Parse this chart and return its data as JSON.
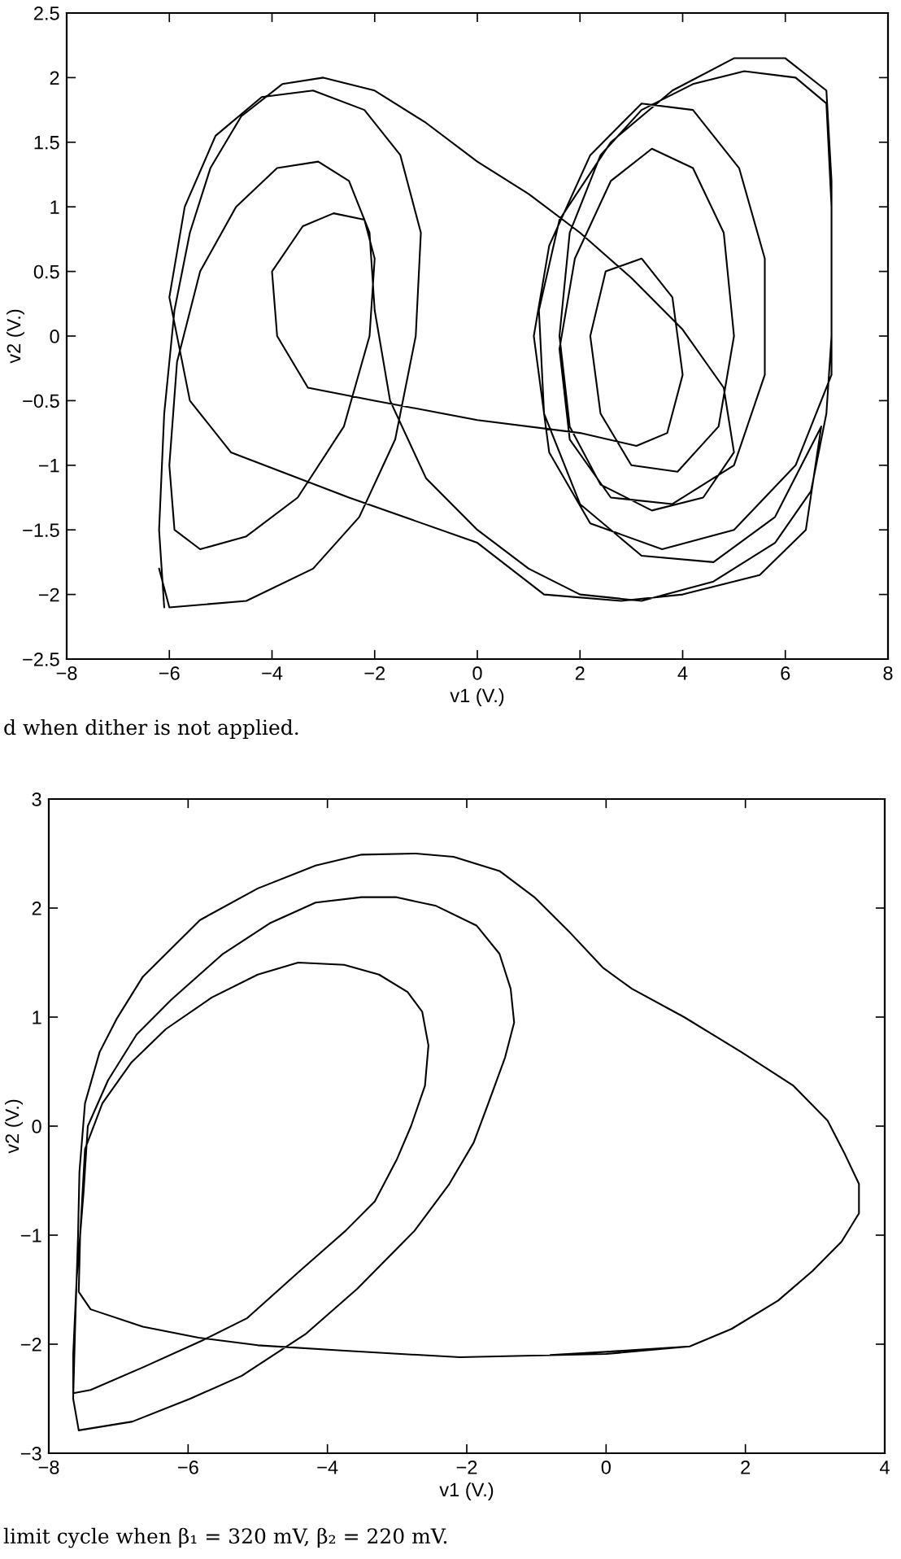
{
  "chart_data": [
    {
      "type": "line",
      "xlabel": "v1 (V.)",
      "ylabel": "v2 (V.)",
      "xlim": [
        -8,
        8
      ],
      "ylim": [
        -2.5,
        2.5
      ],
      "xticks": [
        -8,
        -6,
        -4,
        -2,
        0,
        2,
        4,
        6,
        8
      ],
      "yticks": [
        -2.5,
        -2,
        -1.5,
        -1,
        -0.5,
        0,
        0.5,
        1,
        1.5,
        2,
        2.5
      ],
      "series": [
        {
          "color": "#000000",
          "x": [
            -6.1,
            -6.2,
            -6.1,
            -5.9,
            -5.6,
            -5.2,
            -4.6,
            -3.8,
            -3.0,
            -2.0,
            -1.0,
            0.0,
            1.0,
            2.0,
            3.0,
            4.0,
            4.8,
            5.0,
            4.4,
            3.4,
            2.4,
            1.8,
            1.6,
            1.8,
            2.4,
            3.2,
            4.2,
            5.2,
            6.2,
            6.8,
            6.9,
            6.9,
            6.8,
            6.5,
            5.8,
            4.6,
            3.2,
            2.0,
            1.0,
            0.0,
            -1.0,
            -1.7,
            -2.0,
            -2.1,
            -2.5,
            -3.1,
            -3.9,
            -4.7,
            -5.4,
            -5.85,
            -6.0,
            -5.9,
            -5.4,
            -4.5,
            -3.5,
            -2.6,
            -2.1,
            -2.0,
            -2.2,
            -2.8,
            -3.4,
            -4.0,
            -3.9,
            -3.3,
            -2.0,
            0.0,
            2.0,
            3.1,
            3.7,
            4.0,
            3.8,
            3.2,
            2.5,
            2.2,
            2.4,
            3.0,
            3.9,
            4.7,
            5.0,
            4.8,
            4.2,
            3.4,
            2.6,
            1.9,
            1.6,
            1.8,
            2.6,
            3.8,
            5.0,
            5.6,
            5.6,
            5.1,
            4.2,
            3.2,
            2.2,
            1.4,
            1.1,
            1.4,
            2.2,
            3.6,
            5.0,
            6.2,
            6.9,
            6.9,
            6.8,
            6.0,
            5.0,
            3.8,
            2.6,
            1.6,
            1.2,
            1.3,
            2.0,
            3.2,
            4.6,
            5.8,
            6.7,
            6.4,
            5.5,
            4.0,
            2.8,
            1.3,
            0.0,
            -2.5,
            -4.8,
            -5.6,
            -6.0,
            -5.7,
            -5.1,
            -4.2,
            -3.2,
            -2.2,
            -1.5,
            -1.1,
            -1.2,
            -1.6,
            -2.3,
            -3.2,
            -4.5,
            -6.0,
            -6.2
          ],
          "values": [
            -2.1,
            -1.5,
            -0.6,
            0.2,
            0.8,
            1.3,
            1.7,
            1.95,
            2.0,
            1.9,
            1.65,
            1.35,
            1.1,
            0.8,
            0.45,
            0.05,
            -0.4,
            -0.9,
            -1.25,
            -1.35,
            -1.15,
            -0.7,
            0.0,
            0.8,
            1.4,
            1.75,
            1.95,
            2.05,
            2.0,
            1.8,
            1.0,
            0.0,
            -0.6,
            -1.2,
            -1.6,
            -1.9,
            -2.05,
            -2.0,
            -1.8,
            -1.5,
            -1.1,
            -0.5,
            0.2,
            0.8,
            1.2,
            1.35,
            1.3,
            1.0,
            0.5,
            -0.2,
            -1.0,
            -1.5,
            -1.65,
            -1.55,
            -1.25,
            -0.7,
            0.0,
            0.6,
            0.9,
            0.95,
            0.85,
            0.5,
            0.0,
            -0.4,
            -0.5,
            -0.65,
            -0.75,
            -0.85,
            -0.75,
            -0.3,
            0.3,
            0.6,
            0.5,
            0.0,
            -0.6,
            -1.0,
            -1.05,
            -0.7,
            0.0,
            0.8,
            1.3,
            1.45,
            1.2,
            0.6,
            -0.1,
            -0.8,
            -1.25,
            -1.3,
            -1.0,
            -0.3,
            0.6,
            1.3,
            1.75,
            1.8,
            1.4,
            0.7,
            0.0,
            -0.9,
            -1.45,
            -1.65,
            -1.5,
            -1.0,
            -0.3,
            1.2,
            1.9,
            2.15,
            2.15,
            1.9,
            1.5,
            0.9,
            0.2,
            -0.6,
            -1.3,
            -1.7,
            -1.75,
            -1.4,
            -0.7,
            -1.5,
            -1.85,
            -2.0,
            -2.05,
            -2.0,
            -1.6,
            -1.25,
            -0.9,
            -0.5,
            0.3,
            1.0,
            1.55,
            1.85,
            1.9,
            1.75,
            1.4,
            0.8,
            0.0,
            -0.8,
            -1.4,
            -1.8,
            -2.05,
            -2.1,
            -1.8
          ]
        }
      ],
      "annotations": [
        "d when dither is not applied."
      ]
    },
    {
      "type": "line",
      "xlabel": "v1 (V.)",
      "ylabel": "v2 (V.)",
      "xlim": [
        -8,
        4
      ],
      "ylim": [
        -3,
        3
      ],
      "xticks": [
        -8,
        -6,
        -4,
        -2,
        0,
        2,
        4
      ],
      "yticks": [
        -3,
        -2,
        -1,
        0,
        1,
        2,
        3
      ],
      "series": [
        {
          "color": "#000000",
          "x": [
            1.2,
            0.0,
            -2.1,
            -3.75,
            -5.0,
            -5.85,
            -6.65,
            -7.4,
            -7.57,
            -7.55,
            -7.48,
            -7.23,
            -6.82,
            -6.32,
            -5.66,
            -5.0,
            -4.42,
            -3.76,
            -3.26,
            -2.85,
            -2.64,
            -2.55,
            -2.6,
            -2.8,
            -3.0,
            -3.32,
            -3.74,
            -4.4,
            -5.15,
            -5.81,
            -6.64,
            -7.4,
            -7.65,
            -7.65,
            -7.6,
            -7.5,
            -7.44,
            -7.15,
            -6.74,
            -6.24,
            -5.5,
            -4.83,
            -4.17,
            -3.51,
            -3.02,
            -2.44,
            -1.86,
            -1.53,
            -1.37,
            -1.32,
            -1.45,
            -1.69,
            -1.9,
            -2.25,
            -2.75,
            -3.57,
            -4.32,
            -5.23,
            -5.97,
            -6.8,
            -7.57,
            -7.65,
            -7.62,
            -7.58,
            -7.56,
            -7.48,
            -7.27,
            -7.02,
            -6.65,
            -5.83,
            -5.0,
            -4.17,
            -3.51,
            -2.73,
            -2.19,
            -1.53,
            -1.03,
            -0.54,
            -0.04,
            0.37,
            1.12,
            1.94,
            2.69,
            3.18,
            3.43,
            3.63,
            3.63,
            3.38,
            2.96,
            2.47,
            1.8,
            1.2,
            0.0,
            -0.8
          ],
          "values": [
            -2.02,
            -2.09,
            -2.12,
            -2.06,
            -2.01,
            -1.94,
            -1.84,
            -1.68,
            -1.52,
            -1.0,
            -0.21,
            0.21,
            0.58,
            0.89,
            1.18,
            1.39,
            1.5,
            1.48,
            1.39,
            1.23,
            1.05,
            0.74,
            0.37,
            0.0,
            -0.3,
            -0.69,
            -0.96,
            -1.33,
            -1.76,
            -1.97,
            -2.21,
            -2.42,
            -2.45,
            -2.1,
            -1.4,
            -0.6,
            0.0,
            0.42,
            0.84,
            1.16,
            1.58,
            1.86,
            2.05,
            2.1,
            2.1,
            2.02,
            1.84,
            1.58,
            1.26,
            0.95,
            0.63,
            0.21,
            -0.15,
            -0.53,
            -0.96,
            -1.49,
            -1.91,
            -2.29,
            -2.5,
            -2.71,
            -2.79,
            -2.5,
            -1.8,
            -1.0,
            -0.42,
            0.21,
            0.68,
            0.99,
            1.37,
            1.89,
            2.18,
            2.39,
            2.49,
            2.5,
            2.47,
            2.34,
            2.1,
            1.79,
            1.45,
            1.26,
            1.0,
            0.68,
            0.37,
            0.05,
            -0.26,
            -0.53,
            -0.8,
            -1.06,
            -1.33,
            -1.6,
            -1.86,
            -2.02,
            -2.07,
            -2.1
          ]
        }
      ],
      "annotations": [
        "limit cycle when β₁ = 320 mV, β₂ = 220 mV."
      ]
    }
  ]
}
